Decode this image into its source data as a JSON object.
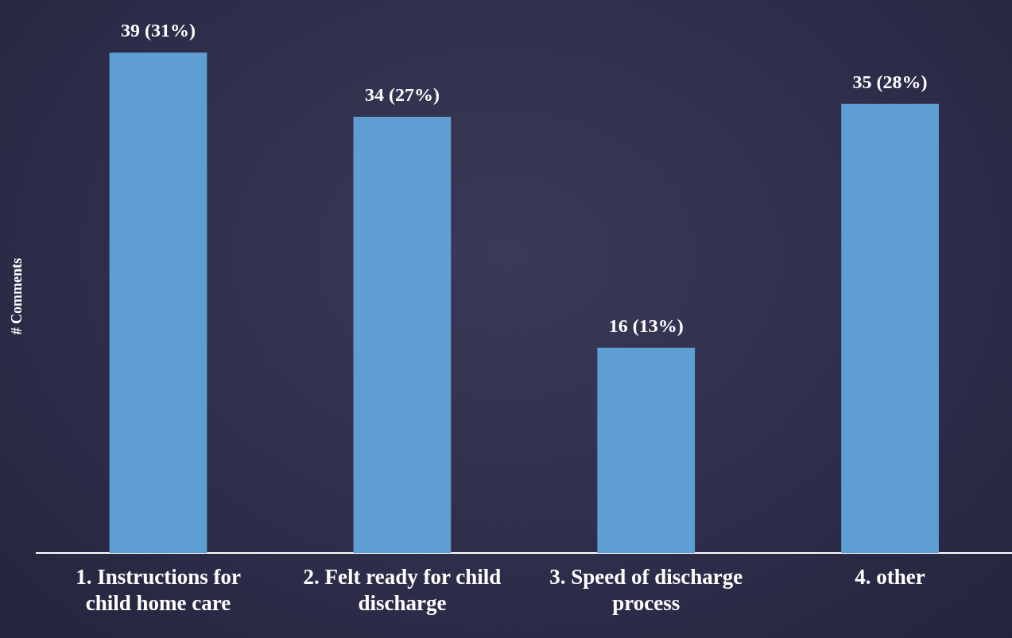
{
  "chart_data": {
    "type": "bar",
    "ylabel": "# Comments",
    "categories": [
      "1. Instructions for child home care",
      "2. Felt ready for child discharge",
      "3. Speed of discharge process",
      "4. other"
    ],
    "values": [
      39,
      34,
      16,
      35
    ],
    "color": "#5f9ed2",
    "value_labels": [
      "39 (31%)",
      "34 (27%)",
      "16 (13%)",
      "35 (28%)"
    ],
    "grid": false,
    "legend": false,
    "tick_labels": "x"
  }
}
